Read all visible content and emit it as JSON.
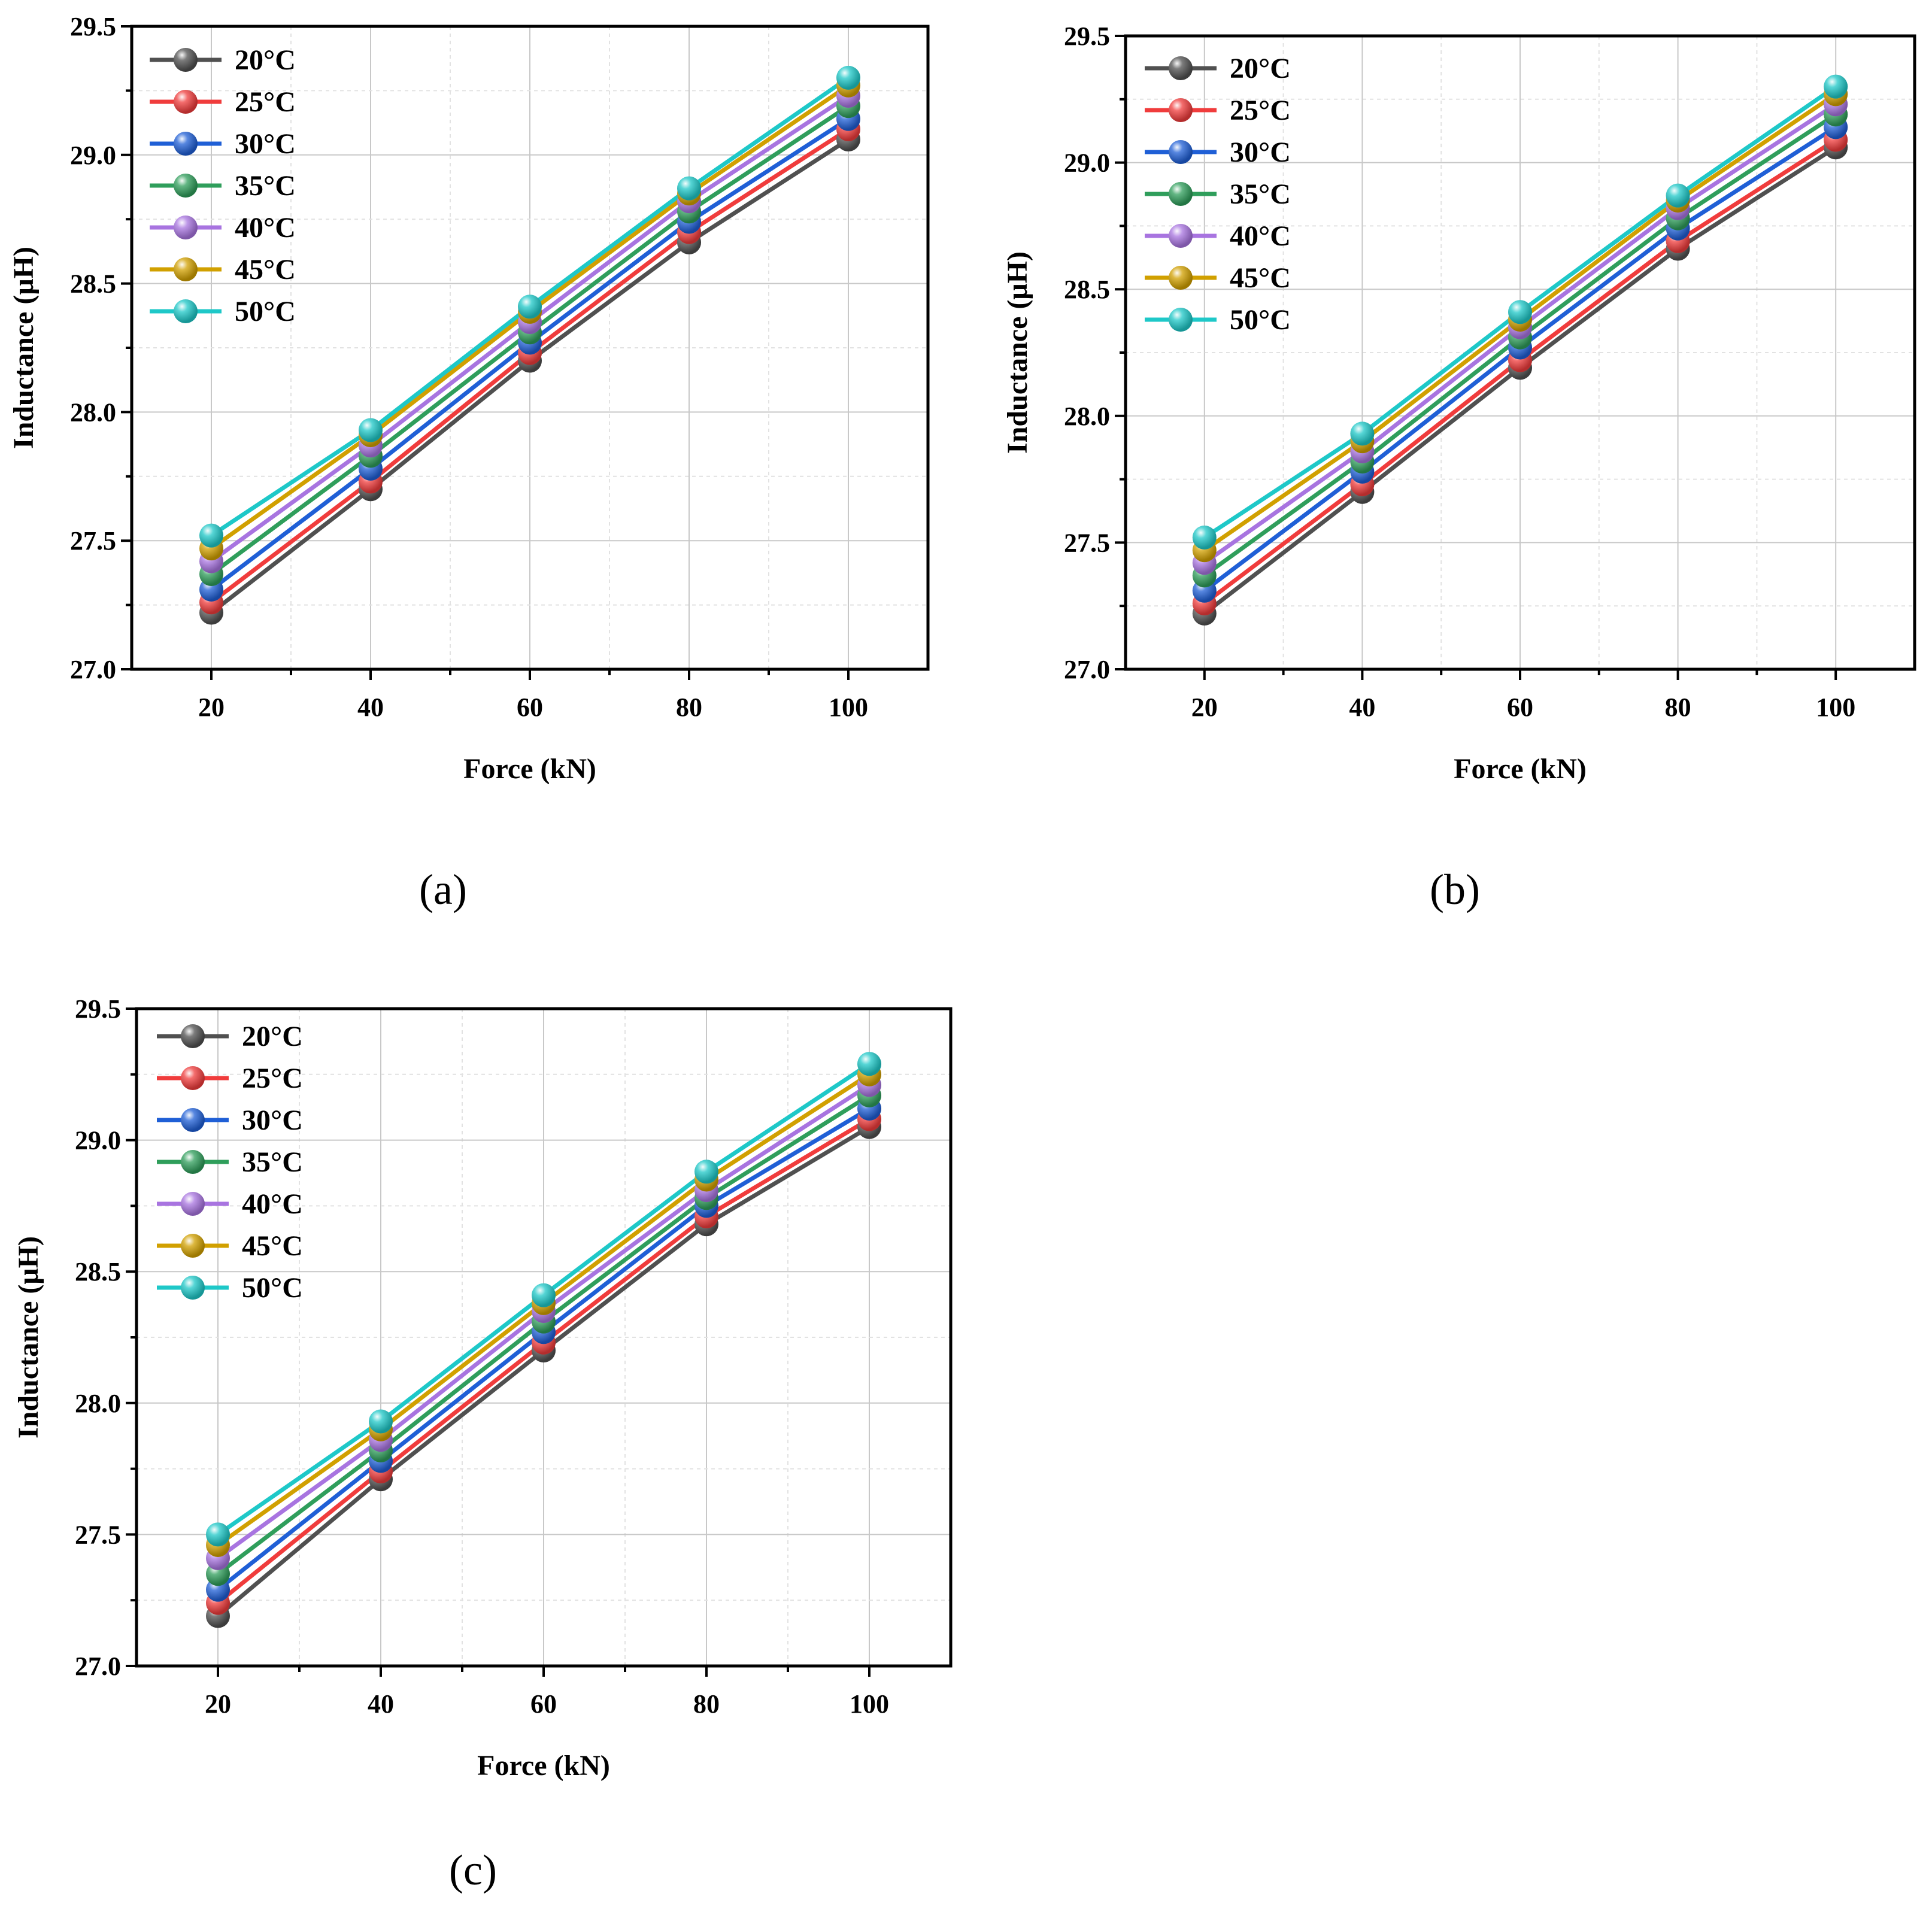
{
  "figure": {
    "panels": [
      "(a)",
      "(b)",
      "(c)"
    ]
  },
  "chart_data": [
    {
      "type": "line",
      "panel_label": "(a)",
      "title": "",
      "xlabel": "Force (kN)",
      "ylabel": "Inductance  (μH)",
      "xlim": [
        10,
        110
      ],
      "ylim": [
        27.0,
        29.5
      ],
      "x_ticks": [
        "20",
        "40",
        "60",
        "80",
        "100"
      ],
      "y_ticks": [
        "27.0",
        "27.5",
        "28.0",
        "28.5",
        "29.0",
        "29.5"
      ],
      "grid": "on",
      "legend_position": "top-left",
      "x": [
        20,
        40,
        60,
        80,
        100
      ],
      "series": [
        {
          "name": "20°C",
          "color": "#505050",
          "values": [
            27.22,
            27.7,
            28.2,
            28.66,
            29.06
          ]
        },
        {
          "name": "25°C",
          "color": "#f03c3c",
          "values": [
            27.26,
            27.73,
            28.23,
            28.7,
            29.1
          ]
        },
        {
          "name": "30°C",
          "color": "#1f5fd6",
          "values": [
            27.31,
            27.78,
            28.27,
            28.74,
            29.14
          ]
        },
        {
          "name": "35°C",
          "color": "#2f9e5b",
          "values": [
            27.37,
            27.83,
            28.31,
            28.78,
            29.19
          ]
        },
        {
          "name": "40°C",
          "color": "#a874e0",
          "values": [
            27.42,
            27.87,
            28.35,
            28.82,
            29.23
          ]
        },
        {
          "name": "45°C",
          "color": "#d1a000",
          "values": [
            27.47,
            27.91,
            28.39,
            28.85,
            29.27
          ]
        },
        {
          "name": "50°C",
          "color": "#1ec8c8",
          "values": [
            27.52,
            27.93,
            28.41,
            28.87,
            29.3
          ]
        }
      ]
    },
    {
      "type": "line",
      "panel_label": "(b)",
      "title": "",
      "xlabel": "Force (kN)",
      "ylabel": "Inductance  (μH)",
      "xlim": [
        10,
        110
      ],
      "ylim": [
        27.0,
        29.5
      ],
      "x_ticks": [
        "20",
        "40",
        "60",
        "80",
        "100"
      ],
      "y_ticks": [
        "27.0",
        "27.5",
        "28.0",
        "28.5",
        "29.0",
        "29.5"
      ],
      "grid": "on",
      "legend_position": "top-left",
      "x": [
        20,
        40,
        60,
        80,
        100
      ],
      "series": [
        {
          "name": "20°C",
          "color": "#505050",
          "values": [
            27.22,
            27.7,
            28.19,
            28.66,
            29.06
          ]
        },
        {
          "name": "25°C",
          "color": "#f03c3c",
          "values": [
            27.26,
            27.73,
            28.22,
            28.69,
            29.09
          ]
        },
        {
          "name": "30°C",
          "color": "#1f5fd6",
          "values": [
            27.31,
            27.78,
            28.27,
            28.74,
            29.14
          ]
        },
        {
          "name": "35°C",
          "color": "#2f9e5b",
          "values": [
            27.37,
            27.82,
            28.31,
            28.78,
            29.19
          ]
        },
        {
          "name": "40°C",
          "color": "#a874e0",
          "values": [
            27.42,
            27.86,
            28.35,
            28.82,
            29.23
          ]
        },
        {
          "name": "45°C",
          "color": "#d1a000",
          "values": [
            27.47,
            27.9,
            28.38,
            28.85,
            29.27
          ]
        },
        {
          "name": "50°C",
          "color": "#1ec8c8",
          "values": [
            27.52,
            27.93,
            28.41,
            28.87,
            29.3
          ]
        }
      ]
    },
    {
      "type": "line",
      "panel_label": "(c)",
      "title": "",
      "xlabel": "Force (kN)",
      "ylabel": "Inductance  (μH)",
      "xlim": [
        10,
        110
      ],
      "ylim": [
        27.0,
        29.5
      ],
      "x_ticks": [
        "20",
        "40",
        "60",
        "80",
        "100"
      ],
      "y_ticks": [
        "27.0",
        "27.5",
        "28.0",
        "28.5",
        "29.0",
        "29.5"
      ],
      "grid": "on",
      "legend_position": "top-left",
      "x": [
        20,
        40,
        60,
        80,
        100
      ],
      "series": [
        {
          "name": "20°C",
          "color": "#505050",
          "values": [
            27.19,
            27.71,
            28.2,
            28.68,
            29.05
          ]
        },
        {
          "name": "25°C",
          "color": "#f03c3c",
          "values": [
            27.24,
            27.74,
            28.23,
            28.71,
            29.08
          ]
        },
        {
          "name": "30°C",
          "color": "#1f5fd6",
          "values": [
            27.29,
            27.78,
            28.27,
            28.75,
            29.12
          ]
        },
        {
          "name": "35°C",
          "color": "#2f9e5b",
          "values": [
            27.35,
            27.82,
            28.31,
            28.78,
            29.17
          ]
        },
        {
          "name": "40°C",
          "color": "#a874e0",
          "values": [
            27.41,
            27.86,
            28.35,
            28.81,
            29.21
          ]
        },
        {
          "name": "45°C",
          "color": "#d1a000",
          "values": [
            27.46,
            27.9,
            28.38,
            28.85,
            29.25
          ]
        },
        {
          "name": "50°C",
          "color": "#1ec8c8",
          "values": [
            27.5,
            27.93,
            28.41,
            28.88,
            29.29
          ]
        }
      ]
    }
  ]
}
